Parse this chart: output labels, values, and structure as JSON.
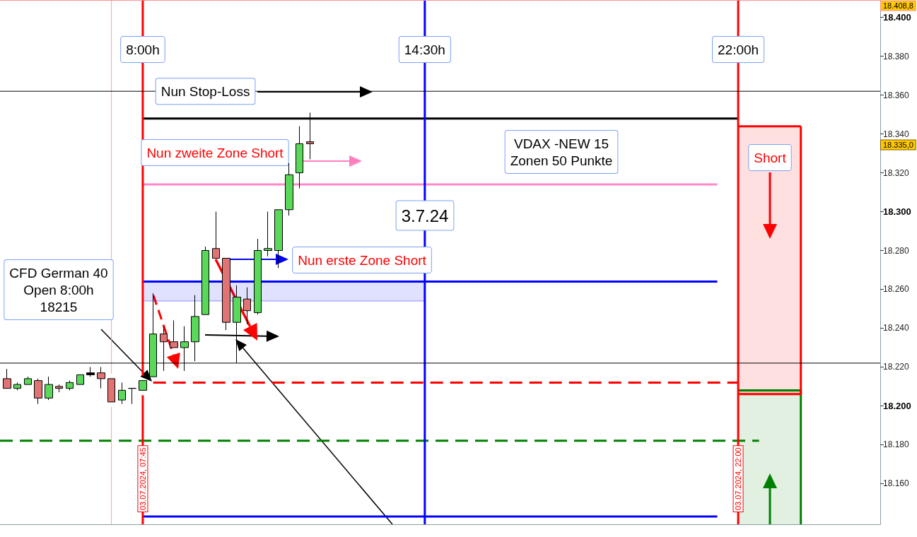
{
  "chart_data": {
    "type": "candlestick",
    "x": [
      "2024-07-03T04:30",
      "2024-07-03T04:45",
      "2024-07-03T05:00",
      "2024-07-03T05:15",
      "2024-07-03T05:30",
      "2024-07-03T05:45",
      "2024-07-03T06:00",
      "2024-07-03T06:15",
      "2024-07-03T06:30",
      "2024-07-03T06:45",
      "2024-07-03T07:00",
      "2024-07-03T07:15",
      "2024-07-03T07:30",
      "2024-07-03T07:45",
      "2024-07-03T08:00",
      "2024-07-03T08:15",
      "2024-07-03T08:30",
      "2024-07-03T08:45",
      "2024-07-03T09:00",
      "2024-07-03T09:15",
      "2024-07-03T09:30",
      "2024-07-03T09:45",
      "2024-07-03T10:00",
      "2024-07-03T10:15",
      "2024-07-03T10:30",
      "2024-07-03T10:45",
      "2024-07-03T11:00",
      "2024-07-03T11:15",
      "2024-07-03T11:30",
      "2024-07-03T11:45"
    ],
    "ohlc": [
      [
        18214,
        18219,
        18209,
        18209
      ],
      [
        18209,
        18212,
        18208,
        18211
      ],
      [
        18211,
        18215,
        18211,
        18214
      ],
      [
        18213,
        18214,
        18201,
        18204
      ],
      [
        18204,
        18215,
        18203,
        18211
      ],
      [
        18210,
        18211,
        18207,
        18209
      ],
      [
        18209,
        18213,
        18208,
        18212
      ],
      [
        18211,
        18216,
        18211,
        18216
      ],
      [
        18216,
        18220,
        18215,
        18217
      ],
      [
        18217,
        18220,
        18209,
        18214
      ],
      [
        18214,
        18214,
        18202,
        18202
      ],
      [
        18203,
        18212,
        18201,
        18208
      ],
      [
        18209,
        18209,
        18201,
        18209
      ],
      [
        18208,
        18213,
        18208,
        18213
      ],
      [
        18215,
        18258,
        18215,
        18237
      ],
      [
        18237,
        18241,
        18218,
        18233
      ],
      [
        18233,
        18244,
        18230,
        18230
      ],
      [
        18230,
        18241,
        18218,
        18233
      ],
      [
        18233,
        18257,
        18223,
        18246
      ],
      [
        18247,
        18282,
        18247,
        18280
      ],
      [
        18281,
        18300,
        18276,
        18276
      ],
      [
        18276,
        18276,
        18239,
        18243
      ],
      [
        18243,
        18262,
        18222,
        18256
      ],
      [
        18255,
        18261,
        18242,
        18249
      ],
      [
        18248,
        18286,
        18247,
        18280
      ],
      [
        18280,
        18300,
        18277,
        18281
      ],
      [
        18280,
        18301,
        18271,
        18301
      ],
      [
        18301,
        18325,
        18298,
        18319
      ],
      [
        18320,
        18344,
        18312,
        18335
      ],
      [
        18336,
        18351,
        18327,
        18335
      ]
    ],
    "colors": [
      "#e07474",
      "#5ad85a",
      "#5ad85a",
      "#e07474",
      "#5ad85a",
      "#e07474",
      "#5ad85a",
      "#5ad85a",
      "#000000",
      "#e07474",
      "#e07474",
      "#5ad85a",
      "#000000",
      "#5ad85a",
      "#5ad85a",
      "#e07474",
      "#e07474",
      "#5ad85a",
      "#5ad85a",
      "#5ad85a",
      "#e07474",
      "#e07474",
      "#5ad85a",
      "#e07474",
      "#5ad85a",
      "#5ad85a",
      "#5ad85a",
      "#5ad85a",
      "#5ad85a",
      "#e07474"
    ],
    "series": [
      {
        "type": "area",
        "x": [
          "2024-07-03T22:00",
          "2024-07-03T23:30"
        ],
        "values": [
          18208,
          18208
        ],
        "color": "#008000"
      },
      {
        "type": "line",
        "x": [
          "2024-07-03T23:30",
          "2024-07-03T23:30"
        ],
        "values": [
          18208,
          18139
        ],
        "color": "#008000"
      },
      {
        "type": "line",
        "x": [
          "2024-07-03T22:00",
          "2024-07-03T23:30"
        ],
        "values": [
          18344,
          18344
        ],
        "lower": [
          18206,
          18206
        ],
        "upper": [
          18344,
          18344
        ],
        "color": "#ff0000"
      },
      {
        "type": "line",
        "x": [
          "2024-07-03T23:30",
          "2024-07-03T23:30",
          "2024-07-03T22:00"
        ],
        "values": [
          18344,
          18206,
          18206
        ],
        "color": "#ff0000"
      },
      {
        "type": "line",
        "x": [
          "2024-07-03T07:45",
          "2024-07-03T14:30",
          "2024-07-03T21:30"
        ],
        "values": [
          18264,
          18264,
          18264
        ],
        "lower": [
          18254,
          18254,
          null
        ],
        "upper": [
          18264,
          18264,
          null
        ],
        "color": "#0000ff"
      },
      {
        "type": "line",
        "x": [
          "2024-07-03T07:45",
          "2024-07-03T22:00"
        ],
        "values": [
          18348,
          18348
        ],
        "color": "#000000"
      },
      {
        "type": "line",
        "x": [
          "2024-07-03T07:45",
          "2024-07-03T21:30"
        ],
        "values": [
          18314,
          18314
        ],
        "color": "#ff88c8"
      },
      {
        "type": "line",
        "x": [
          "2024-07-03T07:45",
          "2024-07-03T21:30"
        ],
        "values": [
          18143,
          18143
        ],
        "color": "#0000ff"
      },
      {
        "type": "line",
        "x": [
          "2024-07-03T08:00",
          "2024-07-03T22:00"
        ],
        "values": [
          18212,
          18212
        ],
        "color": "#ff0000",
        "line_style": "dashed"
      },
      {
        "type": "line",
        "x": [
          "2024-07-03T04:20",
          "2024-07-03T22:30"
        ],
        "values": [
          18182,
          18182
        ],
        "color": "#008000",
        "line_style": "dashed"
      }
    ],
    "xlim": [
      "2024-07-03T04:20",
      "2024-07-04T01:24"
    ],
    "xticks": [
      {
        "value": "2024-07-03T07:45",
        "label": "03.07.2024, 07:45"
      },
      {
        "value": "2024-07-03T22:00",
        "label": "03.07.2024, 22:00"
      }
    ],
    "ylim": [
      18139,
      18409
    ],
    "yticks": [
      {
        "value": 18160,
        "label": "18.160"
      },
      {
        "value": 18180,
        "label": "18.180"
      },
      {
        "value": 18200,
        "label": "18.200"
      },
      {
        "value": 18220,
        "label": "18.220"
      },
      {
        "value": 18240,
        "label": "18.240"
      },
      {
        "value": 18260,
        "label": "18.260"
      },
      {
        "value": 18280,
        "label": "18.280"
      },
      {
        "value": 18300,
        "label": "18.300"
      },
      {
        "value": 18320,
        "label": "18.320"
      },
      {
        "value": 18340,
        "label": "18.340"
      },
      {
        "value": 18360,
        "label": "18.360"
      },
      {
        "value": 18380,
        "label": "18.380"
      },
      {
        "value": 18400,
        "label": "18.400"
      }
    ],
    "ref_lines": [
      {
        "axis": "x",
        "value": "2024-07-03T07:00",
        "color": "#ffa0a0"
      },
      {
        "axis": "x",
        "value": "2024-07-03T07:45",
        "label": "8:00h",
        "color": "#ff0000"
      },
      {
        "axis": "x",
        "value": "2024-07-03T14:30",
        "label": "14:30h",
        "color": "#0000ff"
      },
      {
        "axis": "x",
        "value": "2024-07-03T22:00",
        "label": "22:00h",
        "color": "#ff0000"
      },
      {
        "axis": "y",
        "value": 18408.8,
        "label": "18.408,8",
        "color": "#ff9090"
      },
      {
        "axis": "y",
        "value": 18362,
        "color": "#000000"
      },
      {
        "axis": "y",
        "value": 18222,
        "color": "#000000"
      }
    ],
    "annotations": [
      "18.335,0",
      {
        "text": "Nun Stop-Loss",
        "x": "2024-07-03T09:15",
        "y": 18362
      },
      "Nun zweite Zone Short",
      "VDAX -NEW 15\nZonen 50 Punkte",
      "3.7.24",
      "Nun erste Zone Short",
      "CFD German 40\nOpen 8:00h\n18215",
      "Short"
    ]
  }
}
